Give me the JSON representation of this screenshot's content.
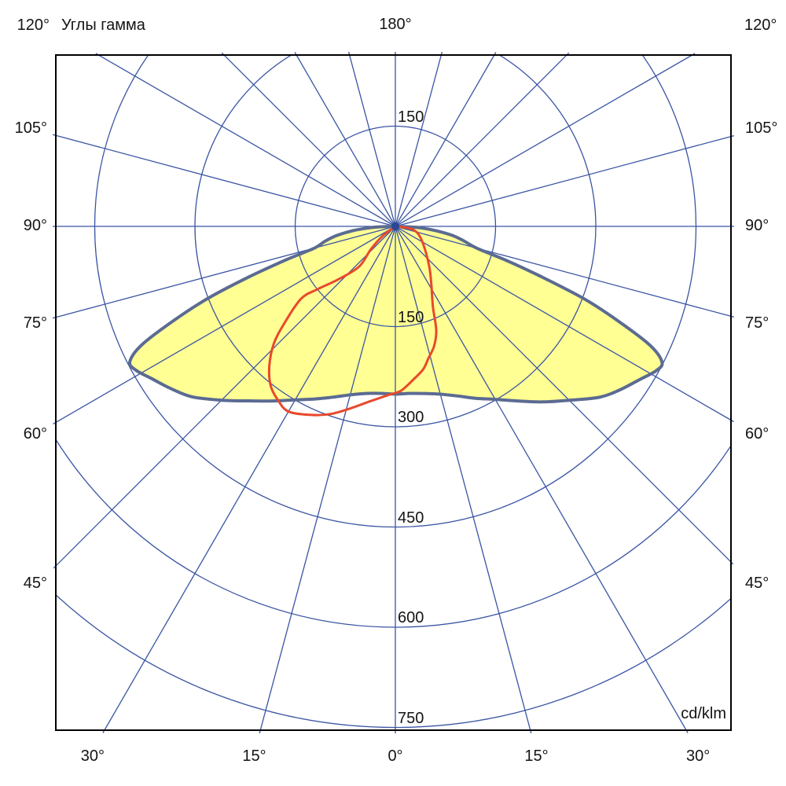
{
  "chart_data": {
    "type": "polar_photometric",
    "title": "Углы гамма",
    "radial_unit": "cd/klm",
    "gamma_step_deg": 15,
    "radial_axis": {
      "ticks_below": [
        "150",
        "300",
        "450",
        "600",
        "750"
      ],
      "tick_values_below": [
        150,
        300,
        450,
        600,
        750
      ],
      "tick_above": "150",
      "tick_value_above": 150,
      "max": 750
    },
    "gamma_labels": {
      "top": "180°",
      "corner_left": "120°",
      "corner_right": "120°",
      "side": [
        {
          "gamma": 105,
          "text": "105°"
        },
        {
          "gamma": 90,
          "text": "90°"
        },
        {
          "gamma": 75,
          "text": "75°"
        },
        {
          "gamma": 60,
          "text": "60°"
        },
        {
          "gamma": 45,
          "text": "45°"
        }
      ],
      "bottom": [
        {
          "gamma": -30,
          "text": "30°"
        },
        {
          "gamma": -15,
          "text": "15°"
        },
        {
          "gamma": 0,
          "text": "0°"
        },
        {
          "gamma": 15,
          "text": "15°"
        },
        {
          "gamma": 30,
          "text": "30°"
        }
      ]
    },
    "series": [
      {
        "name": "plane-C0-C180",
        "style": "filled",
        "fill": "#ffff94",
        "stroke": "#5b6b92",
        "stroke_width": 4,
        "points_gamma_cdklm": [
          [
            -90,
            0
          ],
          [
            -88,
            26
          ],
          [
            -86,
            46
          ],
          [
            -84,
            66
          ],
          [
            -81,
            90
          ],
          [
            -78,
            108
          ],
          [
            -75,
            125
          ],
          [
            -73,
            170
          ],
          [
            -71,
            230
          ],
          [
            -69,
            300
          ],
          [
            -67,
            360
          ],
          [
            -65,
            418
          ],
          [
            -63,
            446
          ],
          [
            -61,
            444
          ],
          [
            -58,
            430
          ],
          [
            -54,
            414
          ],
          [
            -50,
            397
          ],
          [
            -45,
            368
          ],
          [
            -40,
            341
          ],
          [
            -35,
            319
          ],
          [
            -30,
            300
          ],
          [
            -25,
            285
          ],
          [
            -20,
            272
          ],
          [
            -15,
            261
          ],
          [
            -10,
            254
          ],
          [
            -5,
            251
          ],
          [
            0,
            251
          ],
          [
            5,
            251
          ],
          [
            10,
            254
          ],
          [
            15,
            260
          ],
          [
            20,
            270
          ],
          [
            25,
            284
          ],
          [
            30,
            299
          ],
          [
            35,
            319
          ],
          [
            40,
            343
          ],
          [
            45,
            368
          ],
          [
            50,
            398
          ],
          [
            54,
            416
          ],
          [
            58,
            432
          ],
          [
            61,
            446
          ],
          [
            63,
            448
          ],
          [
            65,
            420
          ],
          [
            67,
            362
          ],
          [
            69,
            303
          ],
          [
            71,
            230
          ],
          [
            73,
            172
          ],
          [
            75,
            126
          ],
          [
            78,
            105
          ],
          [
            81,
            86
          ],
          [
            84,
            60
          ],
          [
            87,
            34
          ],
          [
            90,
            0
          ]
        ]
      },
      {
        "name": "plane-C90-C270",
        "style": "line",
        "fill": "none",
        "stroke": "#e8492c",
        "stroke_width": 3,
        "points_gamma_cdklm": [
          [
            -53,
            0
          ],
          [
            -53,
            24
          ],
          [
            -47,
            50
          ],
          [
            -42,
            81
          ],
          [
            -47,
            116
          ],
          [
            -51,
            149
          ],
          [
            -52.5,
            178
          ],
          [
            -49,
            219
          ],
          [
            -46,
            253
          ],
          [
            -42,
            282
          ],
          [
            -38,
            303
          ],
          [
            -34,
            314
          ],
          [
            -30,
            320
          ],
          [
            -24,
            309
          ],
          [
            -19,
            297
          ],
          [
            -14,
            281
          ],
          [
            -8,
            264
          ],
          [
            -2,
            252
          ],
          [
            2,
            246
          ],
          [
            7,
            230
          ],
          [
            11,
            218
          ],
          [
            14,
            204
          ],
          [
            18,
            188
          ],
          [
            21.5,
            167
          ],
          [
            25,
            133
          ],
          [
            31,
            105
          ],
          [
            40,
            79
          ],
          [
            58,
            49
          ],
          [
            75,
            33
          ],
          [
            83,
            18
          ],
          [
            90,
            0
          ]
        ]
      }
    ],
    "colors": {
      "grid": "#3a55a3",
      "border": "#000000",
      "text": "#141414",
      "center_dot": "#2a4697"
    }
  }
}
